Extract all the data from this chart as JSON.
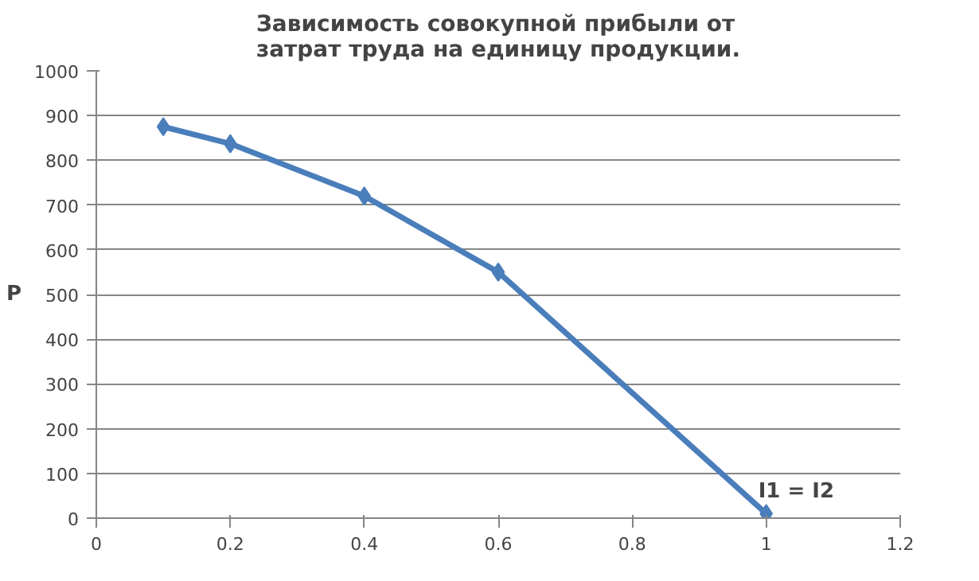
{
  "chart_data": {
    "type": "line",
    "title": "Зависимость совокупной прибыли от затрат труда на единицу продукции.",
    "ylabel": "P",
    "x": [
      0.1,
      0.2,
      0.4,
      0.6,
      1
    ],
    "series": [
      {
        "color": "#4a7ebb",
        "values": [
          875,
          837,
          720,
          550,
          10
        ]
      }
    ],
    "xlim": [
      0,
      1.2
    ],
    "xticks": [
      0,
      0.2,
      0.4,
      0.6,
      0.8,
      1,
      1.2
    ],
    "ylim": [
      0,
      1000
    ],
    "yticks": [
      0,
      100,
      200,
      300,
      400,
      500,
      600,
      700,
      800,
      900,
      1000
    ],
    "grid": "y",
    "marker": "diamond",
    "line_style": "solid",
    "annotations": [
      {
        "text": "I1 = I2",
        "x": 1,
        "y": 10
      }
    ]
  }
}
